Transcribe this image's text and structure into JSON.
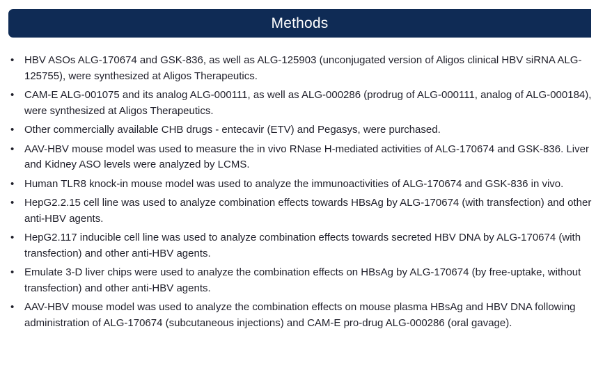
{
  "header": {
    "title": "Methods"
  },
  "bullets": [
    "HBV ASOs ALG-170674 and GSK-836, as well as ALG-125903 (unconjugated version of Aligos clinical HBV siRNA ALG-125755), were synthesized at Aligos Therapeutics.",
    "CAM-E ALG-001075 and its analog ALG-000111, as well as ALG-000286 (prodrug of ALG-000111, analog of ALG-000184), were synthesized at Aligos Therapeutics.",
    "Other commercially available CHB drugs - entecavir (ETV) and Pegasys, were purchased.",
    "AAV-HBV mouse model was used to measure the in vivo RNase H-mediated activities of ALG-170674 and GSK-836.  Liver and Kidney ASO levels were analyzed by LCMS.",
    "Human TLR8 knock-in mouse model was used to analyze the immunoactivities of ALG-170674 and GSK-836 in vivo.",
    "HepG2.2.15 cell line was used to analyze combination effects towards HBsAg by ALG-170674 (with transfection) and other anti-HBV agents.",
    "HepG2.117 inducible cell line was used to analyze combination effects towards secreted HBV DNA by ALG-170674 (with transfection) and other anti-HBV agents.",
    "Emulate 3-D liver chips were used to analyze the combination effects on HBsAg by ALG-170674 (by free-uptake, without transfection) and other anti-HBV agents.",
    "AAV-HBV mouse model was used to analyze the combination effects on mouse plasma HBsAg and HBV DNA following administration of ALG-170674 (subcutaneous injections) and CAM-E pro-drug ALG-000286 (oral gavage)."
  ],
  "bullet_glyph": "•",
  "colors": {
    "header_bg": "#0f2b55",
    "header_text": "#ffffff",
    "body_text": "#1f1f2a"
  }
}
